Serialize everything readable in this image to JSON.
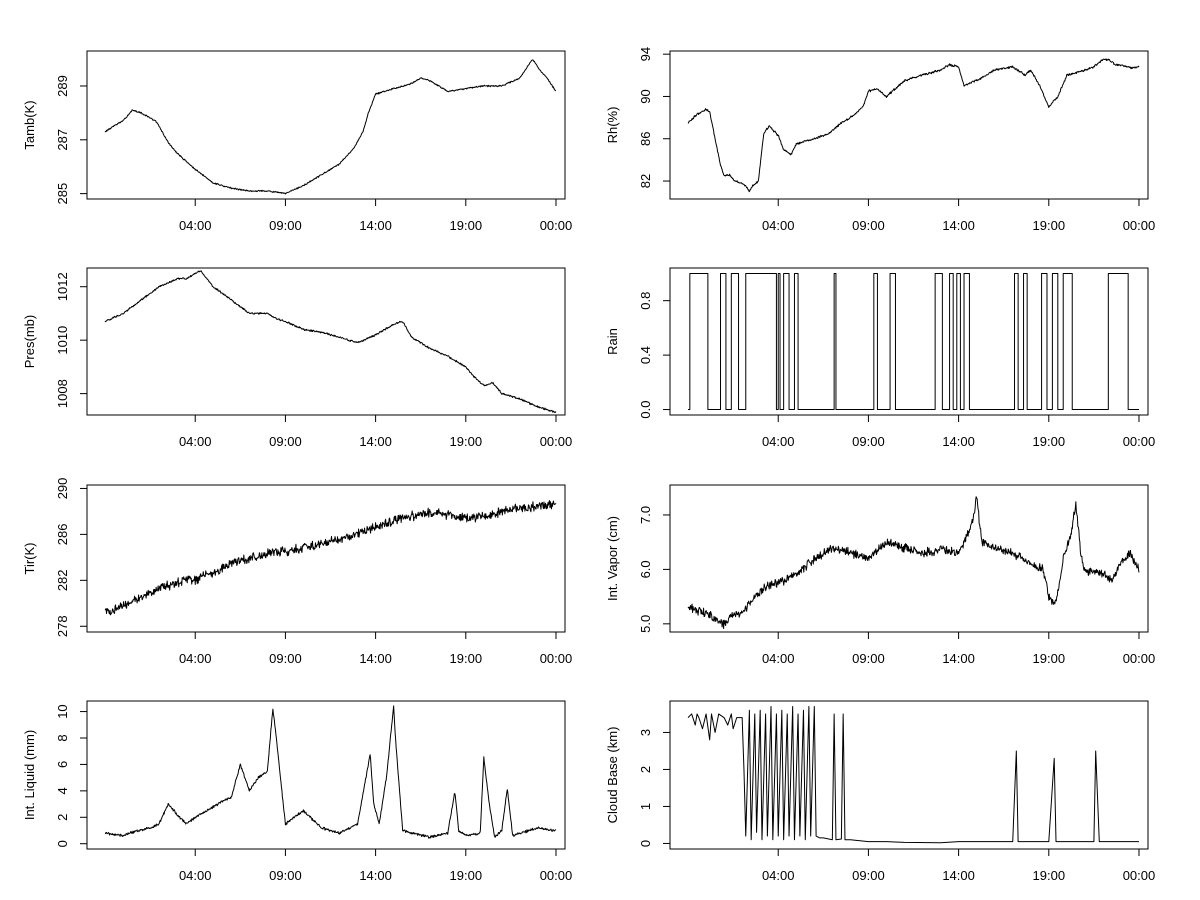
{
  "chart_data": [
    {
      "type": "line",
      "ylabel": "Tamb(K)",
      "xlim": [
        -2,
        24.5
      ],
      "ylim": [
        284.8,
        290.3
      ],
      "x_ticks": [
        4,
        9,
        14,
        19,
        24
      ],
      "x_tick_labels": [
        "04:00",
        "09:00",
        "14:00",
        "19:00",
        "00:00"
      ],
      "y_ticks": [
        285,
        287,
        289
      ],
      "y_tick_labels": [
        "285",
        "287",
        "289"
      ],
      "noise": 0.04,
      "series": [
        {
          "x": [
            -1,
            -0.3,
            0,
            0.5,
            1,
            1.8,
            2,
            2.5,
            3,
            3.5,
            4,
            5,
            6,
            7,
            8,
            9,
            10,
            11,
            12,
            12.8,
            13.3,
            13.6,
            14,
            15,
            16,
            16.5,
            17,
            17.5,
            18,
            19,
            20,
            21,
            22,
            22.5,
            22.7,
            23.1,
            23.5,
            23.9,
            24
          ],
          "y": [
            287.3,
            287.6,
            287.7,
            288.1,
            288.0,
            287.7,
            287.5,
            286.9,
            286.5,
            286.2,
            285.9,
            285.4,
            285.2,
            285.1,
            285.1,
            285.0,
            285.3,
            285.7,
            286.1,
            286.7,
            287.3,
            288.0,
            288.7,
            288.9,
            289.1,
            289.3,
            289.2,
            289.0,
            288.8,
            288.9,
            289.0,
            289.0,
            289.3,
            289.8,
            290.0,
            289.6,
            289.3,
            288.9,
            288.8
          ]
        }
      ]
    },
    {
      "type": "line",
      "ylabel": "Rh(%)",
      "xlim": [
        -2,
        24.5
      ],
      "ylim": [
        80.3,
        94.3
      ],
      "x_ticks": [
        4,
        9,
        14,
        19,
        24
      ],
      "x_tick_labels": [
        "04:00",
        "09:00",
        "14:00",
        "19:00",
        "00:00"
      ],
      "y_ticks": [
        82,
        86,
        90,
        94
      ],
      "y_tick_labels": [
        "82",
        "86",
        "90",
        "94"
      ],
      "noise": 0.15,
      "series": [
        {
          "x": [
            -1,
            -0.5,
            0,
            0.2,
            0.5,
            0.8,
            1,
            1.3,
            1.6,
            2,
            2.2,
            2.4,
            2.6,
            2.9,
            3.2,
            3.5,
            4,
            4.3,
            4.7,
            5,
            6,
            6.8,
            7.5,
            8,
            8.7,
            9,
            9.5,
            10,
            11,
            12,
            13,
            13.5,
            14,
            14.3,
            15,
            16,
            17,
            17.7,
            18,
            18.5,
            19,
            19.5,
            20,
            21,
            21.5,
            22,
            22.3,
            22.7,
            23,
            23.5,
            24
          ],
          "y": [
            87.5,
            88.3,
            88.8,
            88.5,
            86.0,
            83.5,
            82.5,
            82.6,
            82.0,
            81.8,
            81.5,
            81.0,
            81.6,
            82.0,
            86.5,
            87.2,
            86.3,
            85.0,
            84.5,
            85.5,
            86.0,
            86.5,
            87.5,
            88.0,
            89.0,
            90.5,
            90.7,
            90.0,
            91.5,
            92.0,
            92.5,
            93.0,
            92.8,
            91.0,
            91.5,
            92.5,
            92.8,
            92.0,
            92.5,
            91.0,
            89.0,
            90.0,
            92.0,
            92.5,
            92.8,
            93.5,
            93.5,
            93.0,
            93.0,
            92.7,
            92.8
          ]
        }
      ]
    },
    {
      "type": "line",
      "ylabel": "Pres(mb)",
      "xlim": [
        -2,
        24.5
      ],
      "ylim": [
        1007.2,
        1012.7
      ],
      "x_ticks": [
        4,
        9,
        14,
        19,
        24
      ],
      "x_tick_labels": [
        "04:00",
        "09:00",
        "14:00",
        "19:00",
        "00:00"
      ],
      "y_ticks": [
        1008,
        1010,
        1012
      ],
      "y_tick_labels": [
        "1008",
        "1010",
        "1012"
      ],
      "noise": 0.05,
      "series": [
        {
          "x": [
            -1,
            0,
            1,
            2,
            3,
            3.5,
            4,
            4.3,
            5,
            6,
            7,
            8,
            8.5,
            9,
            10,
            11,
            12,
            13,
            14,
            15,
            15.5,
            16,
            17,
            18,
            19,
            19.5,
            20,
            20.5,
            21,
            22,
            23,
            24
          ],
          "y": [
            1010.7,
            1011.0,
            1011.5,
            1012.0,
            1012.3,
            1012.3,
            1012.5,
            1012.6,
            1012.0,
            1011.5,
            1011.0,
            1011.0,
            1010.8,
            1010.7,
            1010.4,
            1010.3,
            1010.1,
            1009.9,
            1010.2,
            1010.6,
            1010.7,
            1010.1,
            1009.7,
            1009.4,
            1009.0,
            1008.6,
            1008.3,
            1008.4,
            1008.0,
            1007.8,
            1007.5,
            1007.3
          ]
        }
      ]
    },
    {
      "type": "line",
      "ylabel": "Rain",
      "xlim": [
        -2,
        24.5
      ],
      "ylim": [
        -0.04,
        1.04
      ],
      "x_ticks": [
        4,
        9,
        14,
        19,
        24
      ],
      "x_tick_labels": [
        "04:00",
        "09:00",
        "14:00",
        "19:00",
        "00:00"
      ],
      "y_ticks": [
        0.0,
        0.4,
        0.8
      ],
      "y_tick_labels": [
        "0.0",
        "0.4",
        "0.8"
      ],
      "noise": 0,
      "series": [
        {
          "x": [
            -1,
            -0.9,
            -0.9,
            0.1,
            0.1,
            0.8,
            0.8,
            1.1,
            1.1,
            1.4,
            1.4,
            1.8,
            1.8,
            2.2,
            2.2,
            3.9,
            3.9,
            4.0,
            4.0,
            4.1,
            4.1,
            4.3,
            4.3,
            4.6,
            4.6,
            4.9,
            4.9,
            5.1,
            5.1,
            7.1,
            7.1,
            7.2,
            7.2,
            9.3,
            9.3,
            9.5,
            9.5,
            10.2,
            10.2,
            10.5,
            10.5,
            12.7,
            12.7,
            13.1,
            13.1,
            13.5,
            13.5,
            13.7,
            13.7,
            13.9,
            13.9,
            14.1,
            14.1,
            14.3,
            14.3,
            14.6,
            14.6,
            17.1,
            17.1,
            17.3,
            17.3,
            17.6,
            17.6,
            17.8,
            17.8,
            18.6,
            18.6,
            18.9,
            18.9,
            19.2,
            19.2,
            19.5,
            19.5,
            19.8,
            19.8,
            20.3,
            20.3,
            22.3,
            22.3,
            23.4,
            23.4,
            23.9,
            23.9,
            24
          ],
          "y": [
            0.0,
            0.0,
            1.0,
            1.0,
            0.0,
            0.0,
            1.0,
            1.0,
            0.0,
            0.0,
            1.0,
            1.0,
            0.0,
            0.0,
            1.0,
            1.0,
            0.0,
            0.0,
            1.0,
            1.0,
            0.0,
            0.0,
            1.0,
            1.0,
            0.0,
            0.0,
            1.0,
            1.0,
            0.0,
            0.0,
            1.0,
            1.0,
            0.0,
            0.0,
            1.0,
            1.0,
            0.0,
            0.0,
            1.0,
            1.0,
            0.0,
            0.0,
            1.0,
            1.0,
            0.0,
            0.0,
            1.0,
            1.0,
            0.0,
            0.0,
            1.0,
            1.0,
            0.0,
            0.0,
            1.0,
            1.0,
            0.0,
            0.0,
            1.0,
            1.0,
            0.0,
            0.0,
            1.0,
            1.0,
            0.0,
            0.0,
            1.0,
            1.0,
            0.0,
            0.0,
            1.0,
            1.0,
            0.0,
            0.0,
            1.0,
            1.0,
            0.0,
            0.0,
            1.0,
            1.0,
            0.0,
            0.0,
            0.0,
            0.0
          ]
        }
      ]
    },
    {
      "type": "line",
      "ylabel": "Tir(K)",
      "xlim": [
        -2,
        24.5
      ],
      "ylim": [
        277.5,
        290.3
      ],
      "x_ticks": [
        4,
        9,
        14,
        19,
        24
      ],
      "x_tick_labels": [
        "04:00",
        "09:00",
        "14:00",
        "19:00",
        "00:00"
      ],
      "y_ticks": [
        278,
        282,
        286,
        290
      ],
      "y_tick_labels": [
        "278",
        "282",
        "286",
        "290"
      ],
      "noise": 0.6,
      "series": [
        {
          "x": [
            -1,
            -0.5,
            0,
            0.5,
            1,
            1.5,
            2,
            2.5,
            3,
            3.5,
            4,
            4.5,
            5,
            5.5,
            6,
            6.5,
            7,
            8,
            9,
            10,
            11,
            12,
            13,
            14,
            15,
            16,
            17,
            18,
            19,
            20,
            21,
            22,
            23,
            24
          ],
          "y": [
            279.5,
            279.3,
            279.8,
            280.2,
            280.5,
            280.8,
            281.3,
            281.5,
            281.8,
            282.2,
            282.0,
            282.5,
            282.5,
            283.0,
            283.5,
            283.8,
            283.9,
            284.3,
            284.5,
            284.8,
            285.2,
            285.6,
            286.0,
            286.8,
            287.2,
            287.6,
            287.9,
            287.7,
            287.4,
            287.6,
            288.0,
            288.3,
            288.5,
            288.6
          ]
        }
      ]
    },
    {
      "type": "line",
      "ylabel": "Int. Vapor (cm)",
      "xlim": [
        -2,
        24.5
      ],
      "ylim": [
        4.85,
        7.55
      ],
      "x_ticks": [
        4,
        9,
        14,
        19,
        24
      ],
      "x_tick_labels": [
        "04:00",
        "09:00",
        "14:00",
        "19:00",
        "00:00"
      ],
      "y_ticks": [
        5.0,
        6.0,
        7.0
      ],
      "y_tick_labels": [
        "5.0",
        "6.0",
        "7.0"
      ],
      "noise": 0.12,
      "series": [
        {
          "x": [
            -1,
            -0.5,
            0,
            0.5,
            1,
            1.5,
            2,
            2.5,
            3,
            3.5,
            4,
            5,
            6,
            7,
            8,
            9,
            10,
            11,
            12,
            13,
            14,
            14.7,
            15,
            15.3,
            16,
            17,
            18,
            18.7,
            19,
            19.4,
            19.8,
            20.2,
            20.5,
            20.8,
            21,
            22,
            22.5,
            23,
            23.5,
            24
          ],
          "y": [
            5.3,
            5.25,
            5.2,
            5.1,
            5.0,
            5.15,
            5.2,
            5.4,
            5.6,
            5.7,
            5.75,
            5.9,
            6.2,
            6.4,
            6.3,
            6.2,
            6.5,
            6.4,
            6.3,
            6.35,
            6.3,
            6.8,
            7.3,
            6.5,
            6.4,
            6.3,
            6.1,
            6.0,
            5.5,
            5.35,
            6.2,
            6.6,
            7.2,
            6.2,
            6.0,
            5.9,
            5.8,
            6.1,
            6.3,
            6.0
          ]
        }
      ]
    },
    {
      "type": "line",
      "ylabel": "Int. Liquid (mm)",
      "xlim": [
        -2,
        24.5
      ],
      "ylim": [
        -0.4,
        10.8
      ],
      "x_ticks": [
        4,
        9,
        14,
        19,
        24
      ],
      "x_tick_labels": [
        "04:00",
        "09:00",
        "14:00",
        "19:00",
        "00:00"
      ],
      "y_ticks": [
        0,
        2,
        4,
        6,
        8,
        10
      ],
      "y_tick_labels": [
        "0",
        "2",
        "4",
        "6",
        "8",
        "10"
      ],
      "noise": 0.15,
      "series": [
        {
          "x": [
            -1,
            0,
            0.8,
            1.5,
            2,
            2.5,
            3,
            3.5,
            4,
            5,
            5.5,
            6,
            6.5,
            7,
            7.5,
            8,
            8.3,
            8.5,
            8.8,
            9,
            9.5,
            10,
            11,
            12,
            13,
            13.7,
            13.9,
            14.2,
            14.6,
            15,
            15.1,
            15.5,
            16,
            17,
            18,
            18.4,
            18.6,
            19,
            19.8,
            20,
            20.3,
            20.6,
            21,
            21.3,
            21.6,
            22,
            23,
            24
          ],
          "y": [
            0.8,
            0.6,
            1.0,
            1.2,
            1.5,
            3.0,
            2.2,
            1.5,
            2.0,
            2.8,
            3.2,
            3.5,
            6.0,
            4.0,
            5.0,
            5.5,
            10.2,
            8.0,
            4.0,
            1.5,
            2.0,
            2.5,
            1.2,
            0.8,
            1.5,
            6.8,
            3.0,
            1.5,
            5.0,
            10.4,
            8.0,
            1.0,
            0.8,
            0.5,
            0.8,
            4.0,
            1.0,
            0.6,
            0.8,
            6.5,
            3.0,
            0.5,
            1.0,
            4.2,
            0.6,
            0.8,
            1.2,
            1.0
          ]
        }
      ]
    },
    {
      "type": "line",
      "ylabel": "Cloud Base (km)",
      "xlim": [
        -2,
        24.5
      ],
      "ylim": [
        -0.15,
        3.85
      ],
      "x_ticks": [
        4,
        9,
        14,
        19,
        24
      ],
      "x_tick_labels": [
        "04:00",
        "09:00",
        "14:00",
        "19:00",
        "00:00"
      ],
      "y_ticks": [
        0,
        1,
        2,
        3
      ],
      "y_tick_labels": [
        "0",
        "1",
        "2",
        "3"
      ],
      "noise": 0,
      "series": [
        {
          "x": [
            -1,
            -0.8,
            -0.6,
            -0.5,
            -0.4,
            -0.2,
            0,
            0.2,
            0.3,
            0.5,
            0.7,
            1.0,
            1.2,
            1.4,
            1.5,
            1.7,
            2.0,
            2.1,
            2.2,
            2.4,
            2.5,
            2.7,
            2.8,
            3.0,
            3.1,
            3.3,
            3.4,
            3.6,
            3.7,
            3.9,
            4.0,
            4.2,
            4.3,
            4.5,
            4.6,
            4.8,
            4.9,
            5.1,
            5.2,
            5.4,
            5.5,
            5.7,
            5.8,
            6.0,
            6.1,
            6.3,
            6.5,
            7.0,
            7.1,
            7.2,
            7.5,
            7.6,
            7.7,
            8.0,
            9.0,
            10.0,
            11.0,
            13.0,
            14.0,
            16.0,
            17.0,
            17.2,
            17.3,
            17.5,
            19.0,
            19.3,
            19.4,
            19.6,
            21.0,
            21.5,
            21.6,
            21.8,
            23.0,
            24.0
          ],
          "y": [
            3.4,
            3.5,
            3.2,
            3.5,
            3.4,
            3.1,
            3.5,
            2.8,
            3.5,
            3.0,
            3.5,
            3.4,
            3.2,
            3.5,
            3.1,
            3.4,
            3.4,
            2.0,
            0.2,
            3.6,
            0.1,
            3.5,
            0.3,
            3.6,
            0.1,
            3.5,
            0.2,
            3.7,
            0.1,
            3.5,
            0.2,
            3.6,
            0.1,
            3.5,
            0.2,
            3.7,
            0.1,
            3.5,
            0.2,
            3.6,
            0.1,
            3.7,
            0.2,
            3.7,
            0.2,
            0.15,
            0.15,
            0.1,
            3.5,
            0.1,
            0.12,
            3.5,
            0.1,
            0.1,
            0.05,
            0.05,
            0.03,
            0.02,
            0.05,
            0.05,
            0.05,
            2.5,
            0.05,
            0.05,
            0.05,
            2.3,
            0.05,
            0.05,
            0.05,
            0.05,
            2.5,
            0.05,
            0.05,
            0.05
          ]
        }
      ]
    }
  ]
}
